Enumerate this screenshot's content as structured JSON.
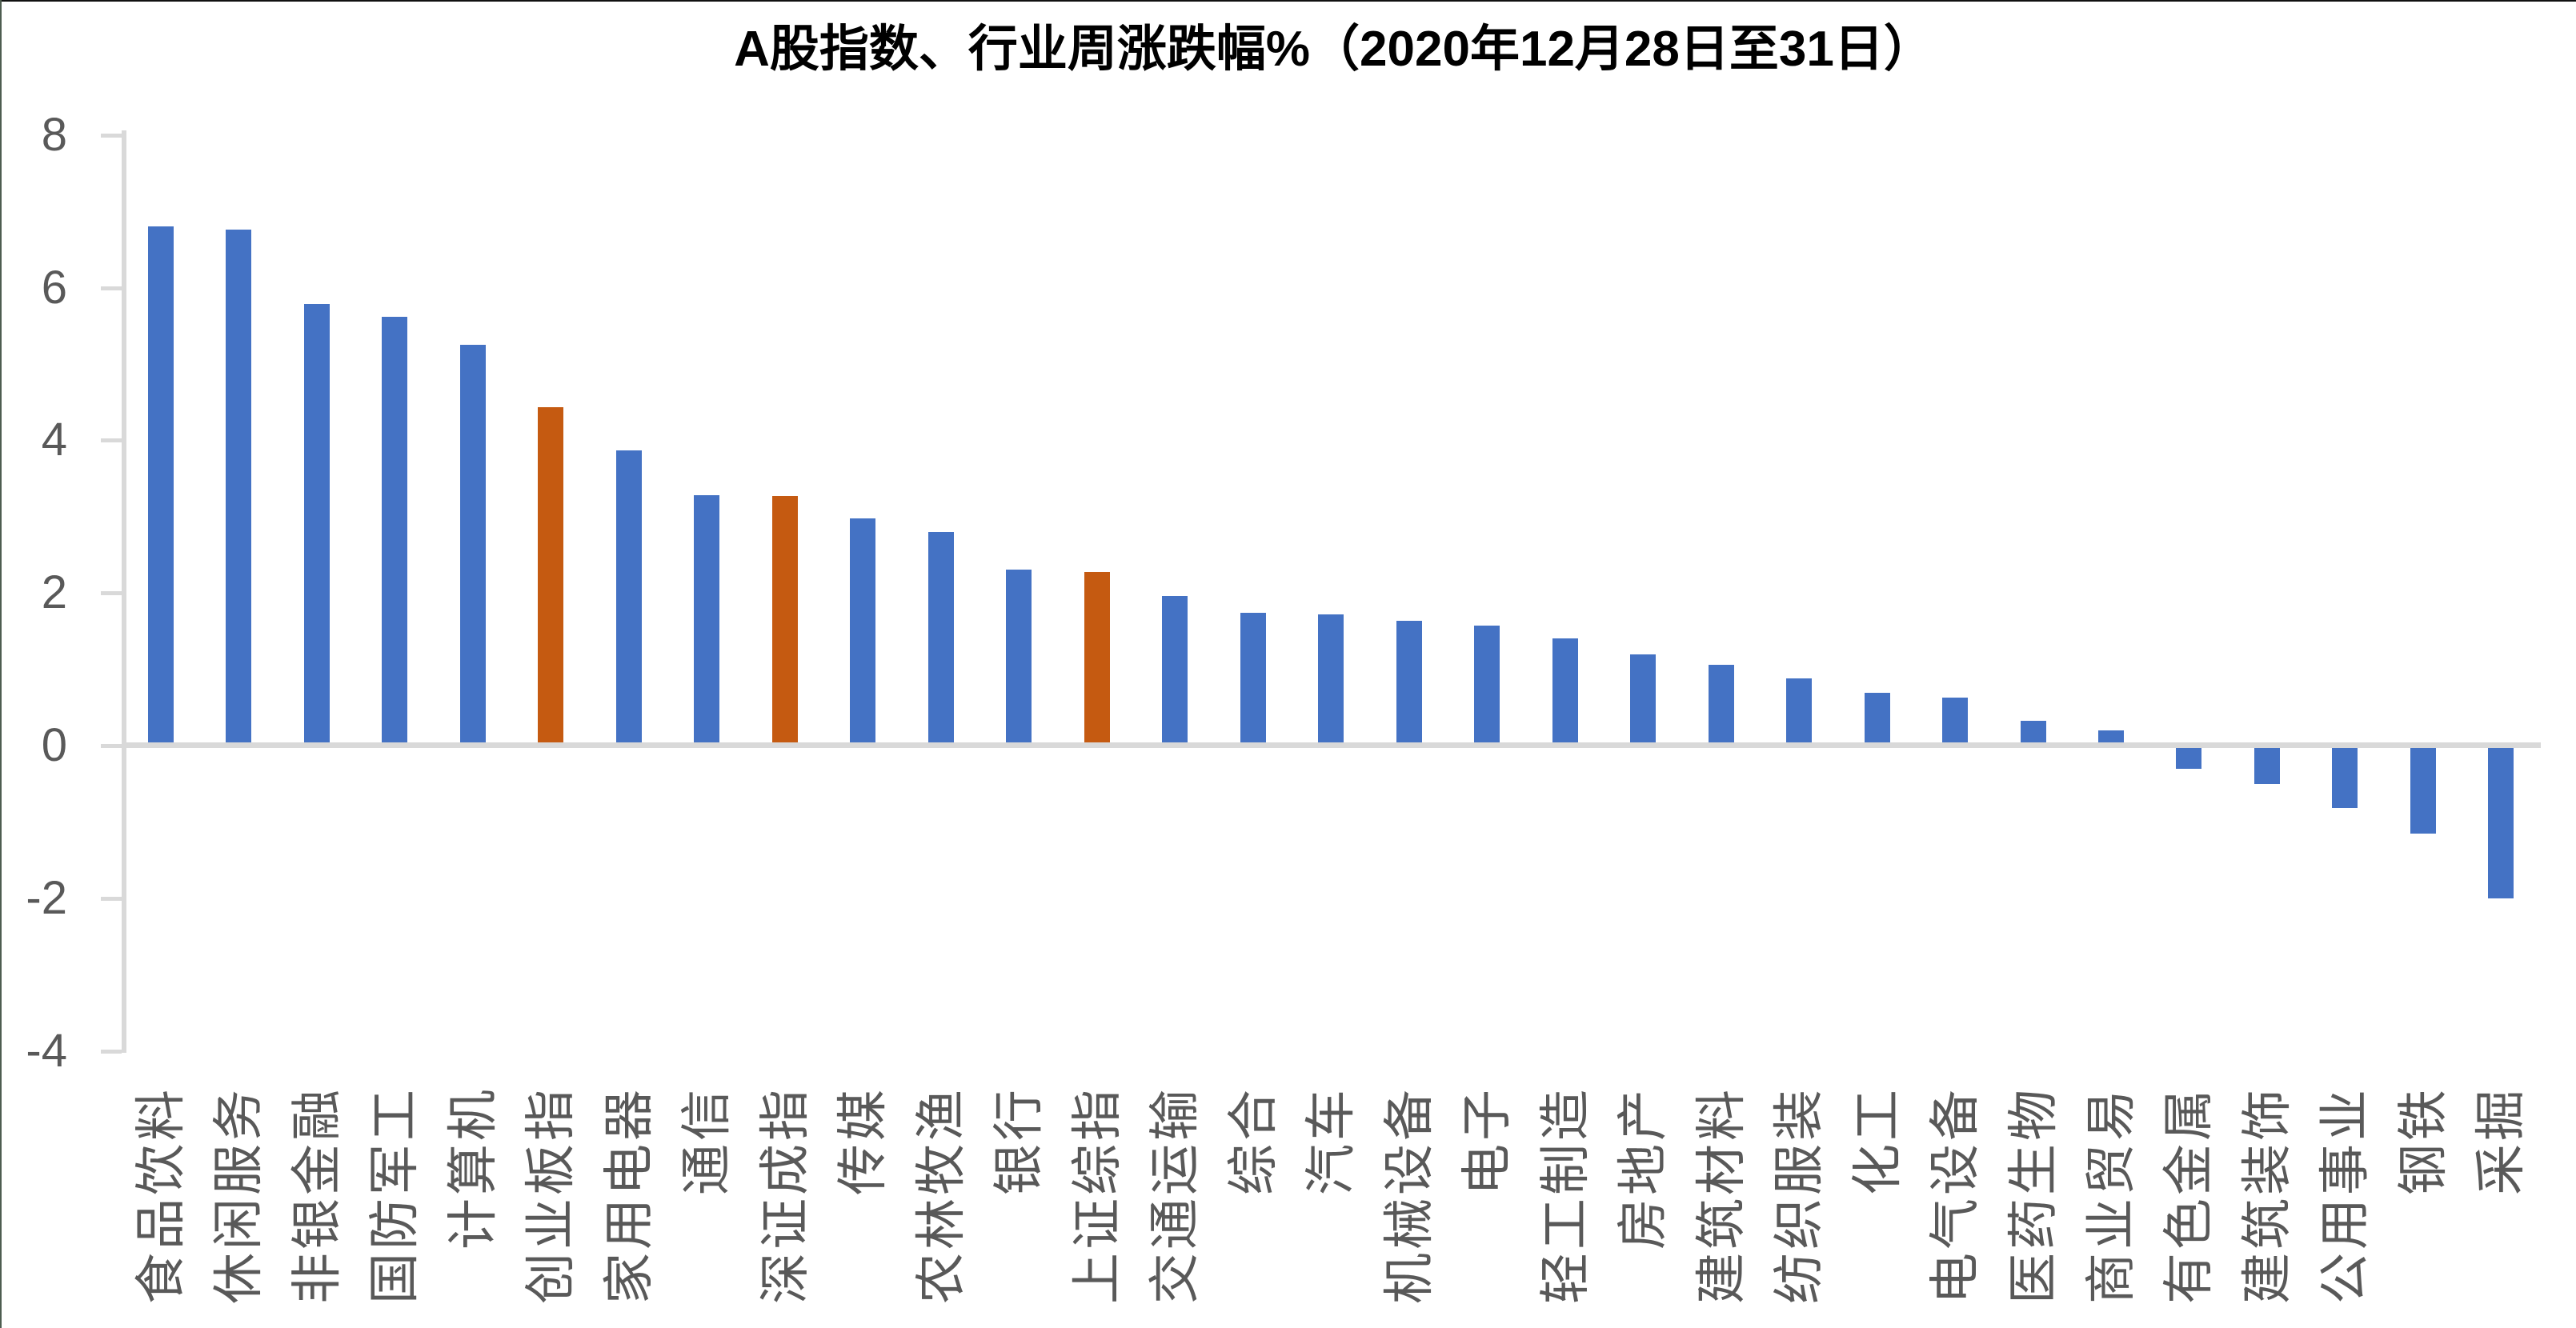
{
  "chart_data": {
    "type": "bar",
    "title": "A股指数、行业周涨跌幅%（2020年12月28日至31日）",
    "xlabel": "",
    "ylabel": "",
    "ylim": [
      -4,
      8
    ],
    "y_ticks": [
      8,
      6,
      4,
      2,
      0,
      -2,
      -4
    ],
    "grid": "zero-line-only",
    "legend": "none",
    "categories": [
      "食品饮料",
      "休闲服务",
      "非银金融",
      "国防军工",
      "计算机",
      "创业板指",
      "家用电器",
      "通信",
      "深证成指",
      "传媒",
      "农林牧渔",
      "银行",
      "上证综指",
      "交通运输",
      "综合",
      "汽车",
      "机械设备",
      "电子",
      "轻工制造",
      "房地产",
      "建筑材料",
      "纺织服装",
      "化工",
      "电气设备",
      "医药生物",
      "商业贸易",
      "有色金属",
      "建筑装饰",
      "公用事业",
      "钢铁",
      "采掘"
    ],
    "values": [
      6.8,
      6.76,
      5.79,
      5.62,
      5.25,
      4.43,
      3.87,
      3.28,
      3.27,
      2.98,
      2.8,
      2.31,
      2.27,
      1.96,
      1.74,
      1.72,
      1.63,
      1.57,
      1.4,
      1.2,
      1.06,
      0.88,
      0.69,
      0.63,
      0.32,
      0.2,
      -0.3,
      -0.5,
      -0.82,
      -1.15,
      -2.0
    ],
    "highlight_indices": [
      5,
      8,
      12
    ],
    "highlight_note": "index-series bars (创业板指, 深证成指, 上证综指) drawn in orange; industry bars in blue",
    "colors": {
      "bar_blue": "#4472C4",
      "bar_orange": "#C55A11",
      "axis_text": "#595959",
      "grid_line": "#D9D9D9",
      "title_text": "#000000"
    }
  }
}
